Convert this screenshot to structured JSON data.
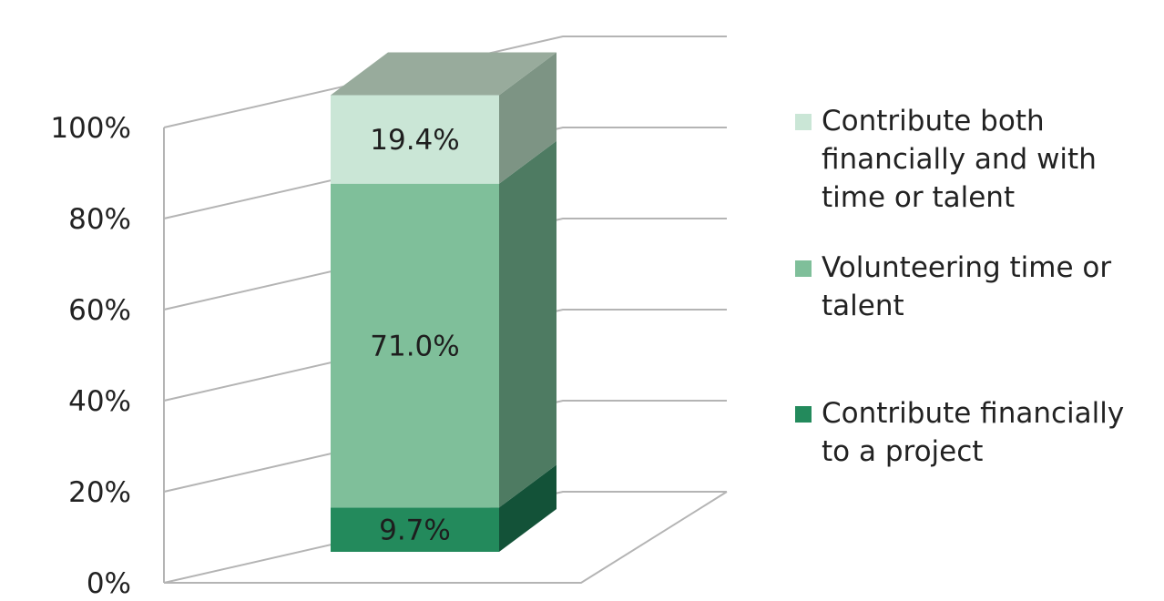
{
  "chart_data": {
    "type": "bar",
    "stacked": true,
    "three_d": true,
    "percent_axis": true,
    "categories": [
      ""
    ],
    "series": [
      {
        "name": "Contribute financially to a project",
        "values": [
          9.7
        ],
        "label": "9.7%",
        "color": "#238a5c",
        "side_color": "#135238",
        "top_color": "#1b6e48"
      },
      {
        "name": "Volunteering time or talent",
        "values": [
          71.0
        ],
        "label": "71.0%",
        "color": "#7fbf9a",
        "side_color": "#4e7b62",
        "top_color": "#6ca285"
      },
      {
        "name": "Contribute both financially and with time or talent",
        "values": [
          19.4
        ],
        "label": "19.4%",
        "color": "#cae6d6",
        "side_color": "#7d9484",
        "top_color": "#98ab9c"
      }
    ],
    "y_ticks": [
      "0%",
      "20%",
      "40%",
      "60%",
      "80%",
      "100%"
    ],
    "ylim": [
      0,
      100
    ],
    "grid": true,
    "legend_position": "right",
    "legend_lines": [
      [
        "Contribute both",
        "financially and with",
        "time or talent"
      ],
      [
        "Volunteering time or",
        "talent"
      ],
      [
        "Contribute financially",
        "to a project"
      ]
    ],
    "title": "",
    "xlabel": "",
    "ylabel": ""
  }
}
